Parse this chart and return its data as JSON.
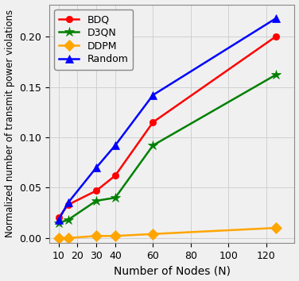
{
  "x_values": [
    10,
    15,
    30,
    40,
    60,
    125
  ],
  "BDQ": [
    0.02,
    0.033,
    0.047,
    0.062,
    0.115,
    0.2
  ],
  "D3QN": [
    0.015,
    0.018,
    0.037,
    0.04,
    0.092,
    0.162
  ],
  "DDPM": [
    0.0,
    0.0,
    0.002,
    0.002,
    0.004,
    0.01
  ],
  "Random": [
    0.018,
    0.035,
    0.07,
    0.092,
    0.142,
    0.218
  ],
  "colors": {
    "BDQ": "#ff0000",
    "D3QN": "#008000",
    "DDPM": "#ffa500",
    "Random": "#0000ff"
  },
  "markers": {
    "BDQ": "o",
    "D3QN": "*",
    "DDPM": "D",
    "Random": "^"
  },
  "markersizes": {
    "BDQ": 6,
    "D3QN": 9,
    "DDPM": 7,
    "Random": 7
  },
  "xlabel": "Number of Nodes (N)",
  "ylabel": "Normalized number of transmit power violations",
  "xlim": [
    5,
    135
  ],
  "ylim": [
    -0.005,
    0.232
  ],
  "xticks": [
    10,
    20,
    30,
    40,
    60,
    80,
    100,
    120
  ],
  "yticks": [
    0.0,
    0.05,
    0.1,
    0.15,
    0.2
  ],
  "figsize": [
    3.76,
    3.54
  ],
  "dpi": 100
}
